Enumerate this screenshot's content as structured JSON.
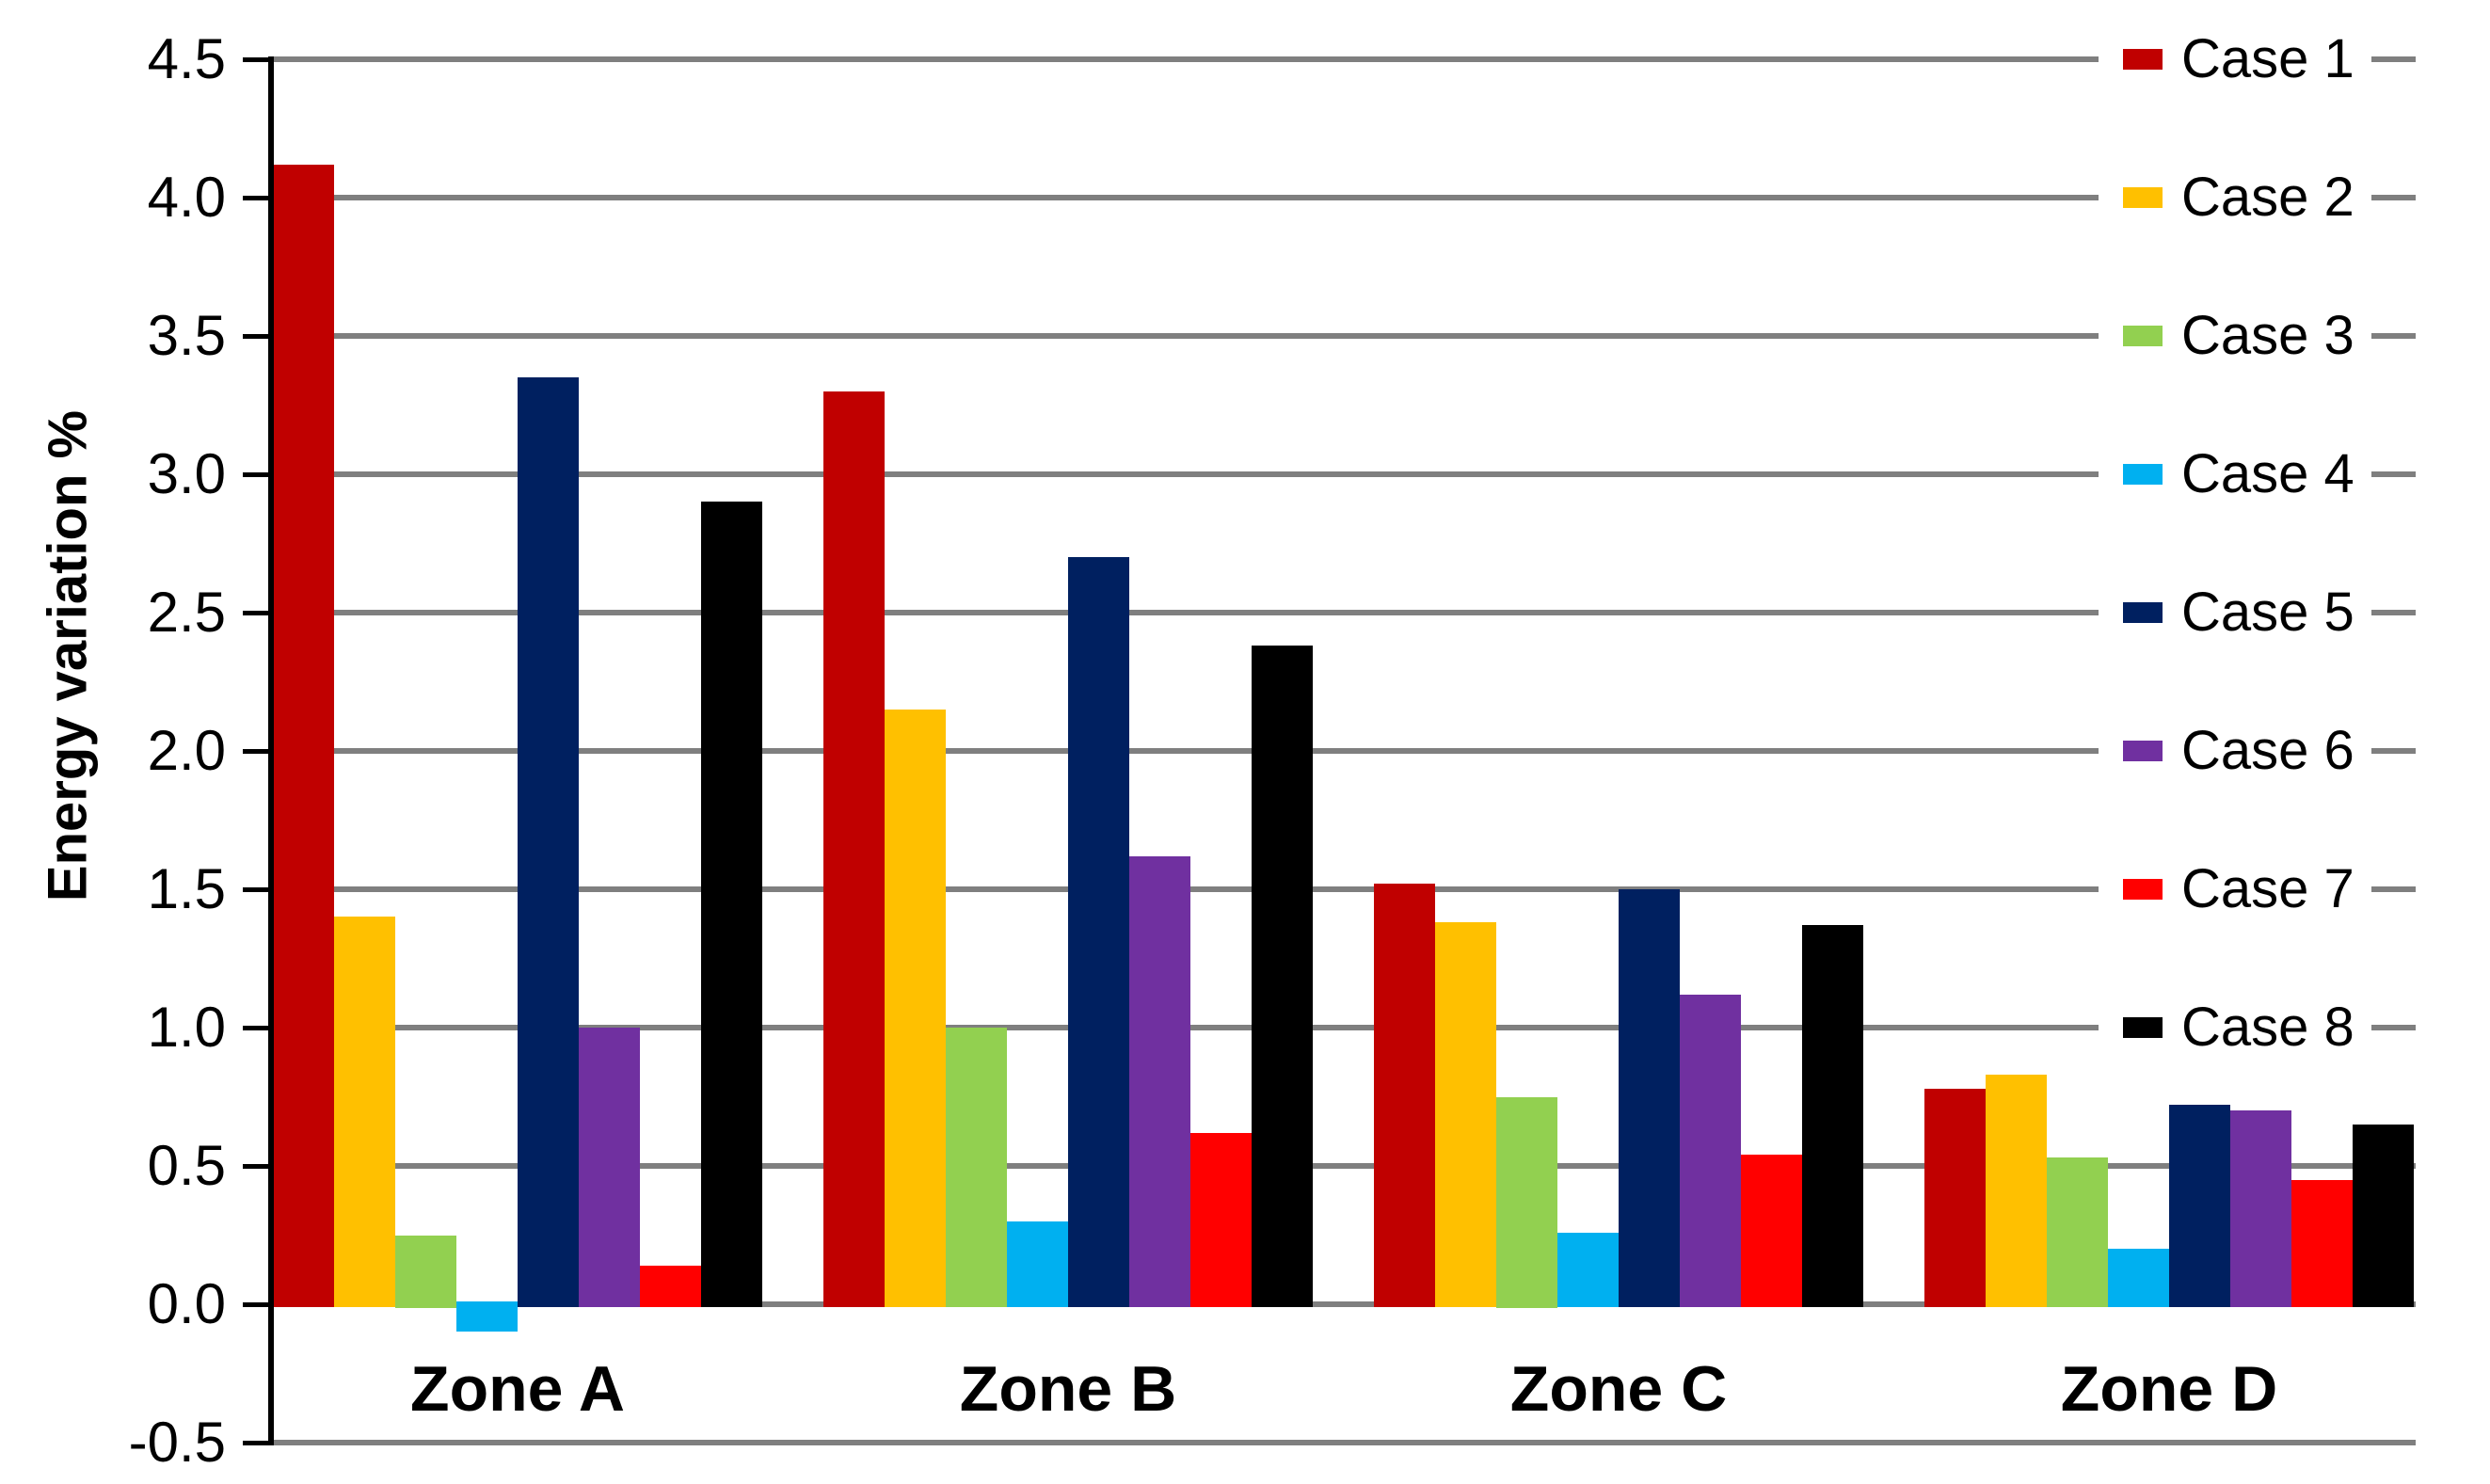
{
  "chart_data": {
    "type": "bar",
    "title": "",
    "xlabel": "",
    "ylabel": "Energy variation %",
    "categories": [
      "Zone A",
      "Zone B",
      "Zone C",
      "Zone D"
    ],
    "series": [
      {
        "name": "Case 1",
        "color": "#C00000",
        "values": [
          4.12,
          3.3,
          1.52,
          0.78
        ]
      },
      {
        "name": "Case 2",
        "color": "#FFC000",
        "values": [
          1.4,
          2.15,
          1.38,
          0.83
        ]
      },
      {
        "name": "Case 3",
        "color": "#92D050",
        "values": [
          0.25,
          1.0,
          0.75,
          0.53
        ]
      },
      {
        "name": "Case 4",
        "color": "#00B0F0",
        "values": [
          -0.1,
          0.3,
          0.26,
          0.2
        ]
      },
      {
        "name": "Case 5",
        "color": "#002060",
        "values": [
          3.35,
          2.7,
          1.5,
          0.72
        ]
      },
      {
        "name": "Case 6",
        "color": "#7030A0",
        "values": [
          1.0,
          1.62,
          1.12,
          0.7
        ]
      },
      {
        "name": "Case 7",
        "color": "#FF0000",
        "values": [
          0.14,
          0.62,
          0.54,
          0.45
        ]
      },
      {
        "name": "Case 8",
        "color": "#000000",
        "values": [
          2.9,
          2.38,
          1.37,
          0.65
        ]
      }
    ],
    "y_axis": {
      "min": -0.5,
      "max": 4.5,
      "step": 0.5,
      "tick_labels": [
        "4.5",
        "4.0",
        "3.5",
        "3.0",
        "2.5",
        "2.0",
        "1.5",
        "1.0",
        "0.5",
        "0.0",
        "-0.5"
      ]
    },
    "legend": {
      "position": "right",
      "entries": [
        "Case 1",
        "Case 2",
        "Case 3",
        "Case 4",
        "Case 5",
        "Case 6",
        "Case 7",
        "Case 8"
      ]
    },
    "grid": true,
    "gridline_color": "#7F7F7F",
    "axis_color": "#000000",
    "background_color": "#FFFFFF"
  }
}
